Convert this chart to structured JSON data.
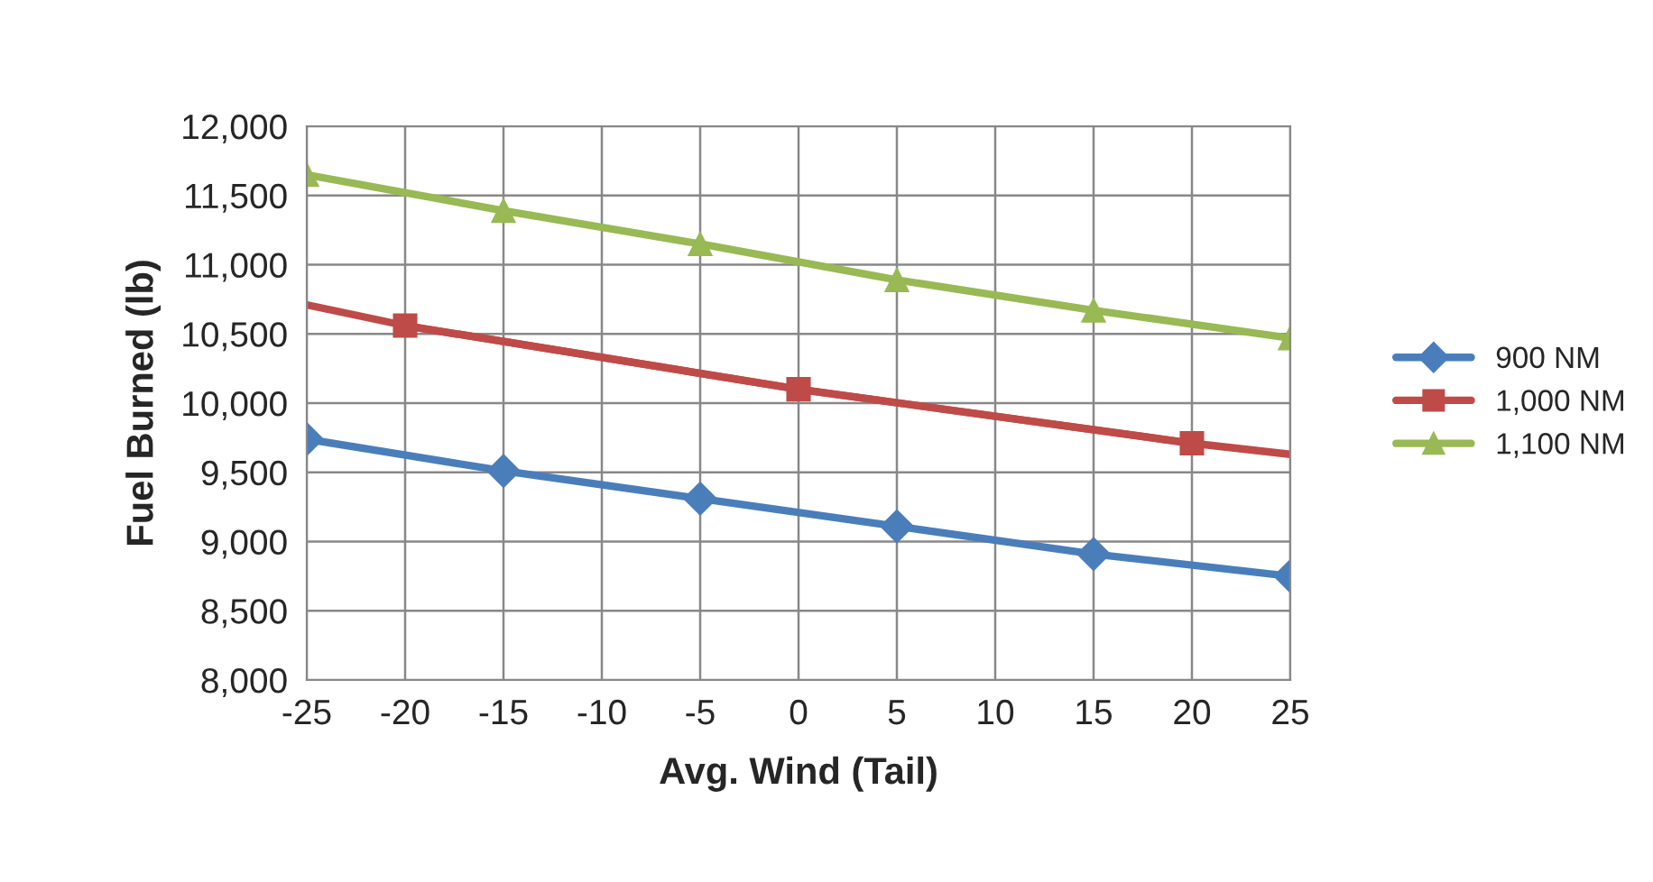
{
  "chart_data": {
    "type": "line",
    "xlabel": "Avg. Wind (Tail)",
    "ylabel": "Fuel Burned (lb)",
    "xlim": [
      -25,
      25
    ],
    "xticks": [
      -25,
      -20,
      -15,
      -10,
      -5,
      0,
      5,
      10,
      15,
      20,
      25
    ],
    "ylim": [
      8000,
      12000
    ],
    "yticks": [
      {
        "value": 8000,
        "label": "8,000"
      },
      {
        "value": 8500,
        "label": "8,500"
      },
      {
        "value": 9000,
        "label": "9,000"
      },
      {
        "value": 9500,
        "label": "9,500"
      },
      {
        "value": 10000,
        "label": "10,000"
      },
      {
        "value": 10500,
        "label": "10,500"
      },
      {
        "value": 11000,
        "label": "11,000"
      },
      {
        "value": 11500,
        "label": "11,500"
      },
      {
        "value": 12000,
        "label": "12,000"
      }
    ],
    "grid": true,
    "legend": "right",
    "series": [
      {
        "name": "900 NM",
        "color": "#4a7ebb",
        "marker": "diamond",
        "x": [
          -25,
          -15,
          -5,
          5,
          15,
          25
        ],
        "values": [
          9740,
          9510,
          9310,
          9110,
          8910,
          8750
        ]
      },
      {
        "name": "1,000 NM",
        "color": "#be4b48",
        "marker": "square",
        "x": [
          -20,
          0,
          20
        ],
        "values": [
          10560,
          10100,
          9710
        ]
      },
      {
        "color": "#be4b48",
        "marker": "none",
        "x": [
          -25,
          -20,
          0,
          20,
          25
        ],
        "values": [
          10710,
          10560,
          10100,
          9710,
          9630
        ]
      },
      {
        "name": "1,100 NM",
        "color": "#98b954",
        "marker": "triangle",
        "x": [
          -25,
          -15,
          -5,
          5,
          15,
          25
        ],
        "values": [
          11650,
          11390,
          11150,
          10890,
          10670,
          10470
        ]
      }
    ]
  }
}
